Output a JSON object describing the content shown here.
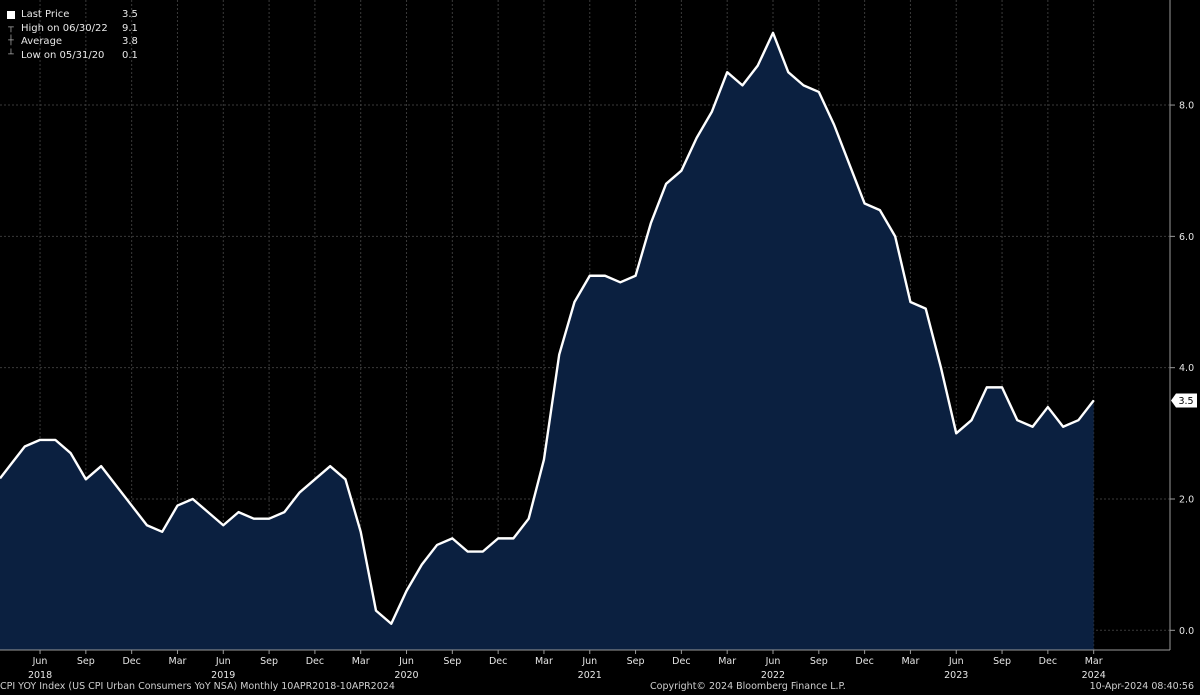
{
  "legend": {
    "items": [
      {
        "label": "Last Price",
        "value": "3.5",
        "icon": "white-square-icon"
      },
      {
        "label": "High on 06/30/22",
        "value": "9.1",
        "icon": "high-marker-icon"
      },
      {
        "label": "Average",
        "value": "3.8",
        "icon": "average-marker-icon"
      },
      {
        "label": "Low on 05/31/20",
        "value": "0.1",
        "icon": "low-marker-icon"
      }
    ]
  },
  "last_value_label": "3.5",
  "footer": {
    "left": "CPI YOY Index (US CPI Urban Consumers YoY NSA)  Monthly 10APR2018-10APR2024",
    "center": "Copyright© 2024 Bloomberg Finance L.P.",
    "right": "10-Apr-2024 08:40:56"
  },
  "colors": {
    "background": "#000000",
    "area_fill": "#0b2040",
    "line": "#ffffff",
    "grid": "#3a3a3a"
  },
  "chart_data": {
    "type": "area",
    "x": [
      "2018-04",
      "2018-05",
      "2018-06",
      "2018-07",
      "2018-08",
      "2018-09",
      "2018-10",
      "2018-11",
      "2018-12",
      "2019-01",
      "2019-02",
      "2019-03",
      "2019-04",
      "2019-05",
      "2019-06",
      "2019-07",
      "2019-08",
      "2019-09",
      "2019-10",
      "2019-11",
      "2019-12",
      "2020-01",
      "2020-02",
      "2020-03",
      "2020-04",
      "2020-05",
      "2020-06",
      "2020-07",
      "2020-08",
      "2020-09",
      "2020-10",
      "2020-11",
      "2020-12",
      "2021-01",
      "2021-02",
      "2021-03",
      "2021-04",
      "2021-05",
      "2021-06",
      "2021-07",
      "2021-08",
      "2021-09",
      "2021-10",
      "2021-11",
      "2021-12",
      "2022-01",
      "2022-02",
      "2022-03",
      "2022-04",
      "2022-05",
      "2022-06",
      "2022-07",
      "2022-08",
      "2022-09",
      "2022-10",
      "2022-11",
      "2022-12",
      "2023-01",
      "2023-02",
      "2023-03",
      "2023-04",
      "2023-05",
      "2023-06",
      "2023-07",
      "2023-08",
      "2023-09",
      "2023-10",
      "2023-11",
      "2023-12",
      "2024-01",
      "2024-02",
      "2024-03"
    ],
    "series": [
      {
        "values": [
          2.5,
          2.8,
          2.9,
          2.9,
          2.7,
          2.3,
          2.5,
          2.2,
          1.9,
          1.6,
          1.5,
          1.9,
          2.0,
          1.8,
          1.6,
          1.8,
          1.7,
          1.7,
          1.8,
          2.1,
          2.3,
          2.5,
          2.3,
          1.5,
          0.3,
          0.1,
          0.6,
          1.0,
          1.3,
          1.4,
          1.2,
          1.2,
          1.4,
          1.4,
          1.7,
          2.6,
          4.2,
          5.0,
          5.4,
          5.4,
          5.3,
          5.4,
          6.2,
          6.8,
          7.0,
          7.5,
          7.9,
          8.5,
          8.3,
          8.6,
          9.1,
          8.5,
          8.3,
          8.2,
          7.7,
          7.1,
          6.5,
          6.4,
          6.0,
          5.0,
          4.9,
          4.0,
          3.0,
          3.2,
          3.7,
          3.7,
          3.2,
          3.1,
          3.4,
          3.1,
          3.2,
          3.5
        ]
      }
    ],
    "y_ticks": [
      "0.0",
      "2.0",
      "4.0",
      "6.0",
      "8.0"
    ],
    "ylim": [
      -0.3,
      9.6
    ],
    "x_month_ticks": [
      {
        "date": "2018-06",
        "label": "Jun"
      },
      {
        "date": "2018-09",
        "label": "Sep"
      },
      {
        "date": "2018-12",
        "label": "Dec"
      },
      {
        "date": "2019-03",
        "label": "Mar"
      },
      {
        "date": "2019-06",
        "label": "Jun"
      },
      {
        "date": "2019-09",
        "label": "Sep"
      },
      {
        "date": "2019-12",
        "label": "Dec"
      },
      {
        "date": "2020-03",
        "label": "Mar"
      },
      {
        "date": "2020-06",
        "label": "Jun"
      },
      {
        "date": "2020-09",
        "label": "Sep"
      },
      {
        "date": "2020-12",
        "label": "Dec"
      },
      {
        "date": "2021-03",
        "label": "Mar"
      },
      {
        "date": "2021-06",
        "label": "Jun"
      },
      {
        "date": "2021-09",
        "label": "Sep"
      },
      {
        "date": "2021-12",
        "label": "Dec"
      },
      {
        "date": "2022-03",
        "label": "Mar"
      },
      {
        "date": "2022-06",
        "label": "Jun"
      },
      {
        "date": "2022-09",
        "label": "Sep"
      },
      {
        "date": "2022-12",
        "label": "Dec"
      },
      {
        "date": "2023-03",
        "label": "Mar"
      },
      {
        "date": "2023-06",
        "label": "Jun"
      },
      {
        "date": "2023-09",
        "label": "Sep"
      },
      {
        "date": "2023-12",
        "label": "Dec"
      },
      {
        "date": "2024-03",
        "label": "Mar"
      }
    ],
    "x_year_labels": [
      {
        "date": "2018-06",
        "label": "2018"
      },
      {
        "date": "2019-06",
        "label": "2019"
      },
      {
        "date": "2020-06",
        "label": "2020"
      },
      {
        "date": "2021-06",
        "label": "2021"
      },
      {
        "date": "2022-06",
        "label": "2022"
      },
      {
        "date": "2023-06",
        "label": "2023"
      },
      {
        "date": "2024-03",
        "label": "2024"
      }
    ],
    "grid": true
  }
}
